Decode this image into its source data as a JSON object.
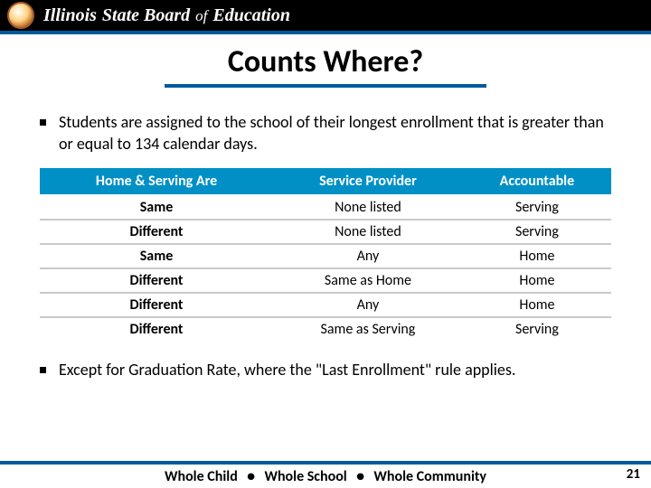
{
  "header": {
    "org_bold1": "Illinois",
    "org_bold2": "State Board",
    "org_thin": "of",
    "org_bold3": "Education"
  },
  "title": "Counts Where?",
  "bullets": {
    "b1": "Students are assigned to the school of their longest enrollment that is greater than or equal to 134 calendar days.",
    "b2": "Except for Graduation Rate, where the \"Last Enrollment\" rule applies."
  },
  "table": {
    "headers": {
      "c1": "Home & Serving Are",
      "c2": "Service Provider",
      "c3": "Accountable"
    },
    "rows": [
      {
        "c1": "Same",
        "c2": "None listed",
        "c3": "Serving"
      },
      {
        "c1": "Different",
        "c2": "None listed",
        "c3": "Serving"
      },
      {
        "c1": "Same",
        "c2": "Any",
        "c3": "Home"
      },
      {
        "c1": "Different",
        "c2": "Same as Home",
        "c3": "Home"
      },
      {
        "c1": "Different",
        "c2": "Any",
        "c3": "Home"
      },
      {
        "c1": "Different",
        "c2": "Same as Serving",
        "c3": "Serving"
      }
    ]
  },
  "footer": {
    "a": "Whole Child",
    "b": "Whole School",
    "c": "Whole Community",
    "sep": "●"
  },
  "page": "21"
}
